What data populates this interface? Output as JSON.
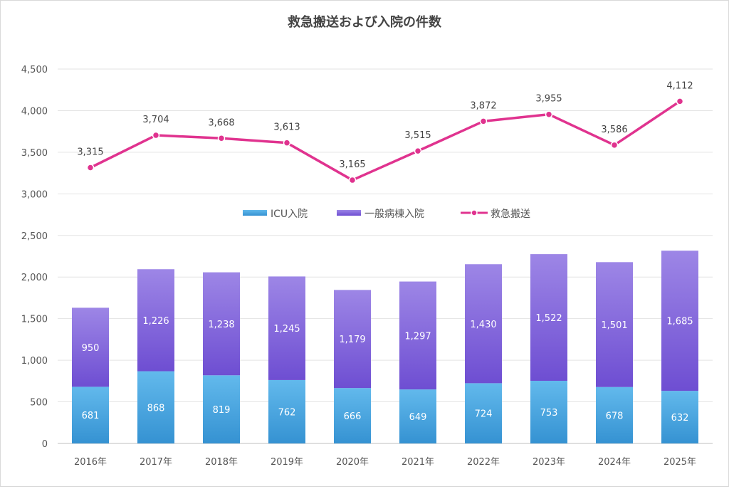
{
  "chart_data": {
    "type": "bar",
    "title": "救急搬送および入院の件数",
    "categories": [
      "2016年",
      "2017年",
      "2018年",
      "2019年",
      "2020年",
      "2021年",
      "2022年",
      "2023年",
      "2024年",
      "2025年"
    ],
    "ylim": [
      0,
      4500
    ],
    "yticks": [
      "0",
      "500",
      "1,000",
      "1,500",
      "2,000",
      "2,500",
      "3,000",
      "3,500",
      "4,000",
      "4,500"
    ],
    "ytick_values": [
      0,
      500,
      1000,
      1500,
      2000,
      2500,
      3000,
      3500,
      4000,
      4500
    ],
    "grid": true,
    "legend_position": "middle",
    "series": [
      {
        "name": "ICU入院",
        "kind": "stacked-bar",
        "color": "#3d9fdb",
        "values": [
          681,
          868,
          819,
          762,
          666,
          649,
          724,
          753,
          678,
          632
        ]
      },
      {
        "name": "一般病棟入院",
        "kind": "stacked-bar",
        "color": "#7b5ad8",
        "values": [
          950,
          1226,
          1238,
          1245,
          1179,
          1297,
          1430,
          1522,
          1501,
          1685
        ]
      },
      {
        "name": "救急搬送",
        "kind": "line",
        "color": "#e0338f",
        "values": [
          3315,
          3704,
          3668,
          3613,
          3165,
          3515,
          3872,
          3955,
          3586,
          4112
        ]
      }
    ]
  }
}
